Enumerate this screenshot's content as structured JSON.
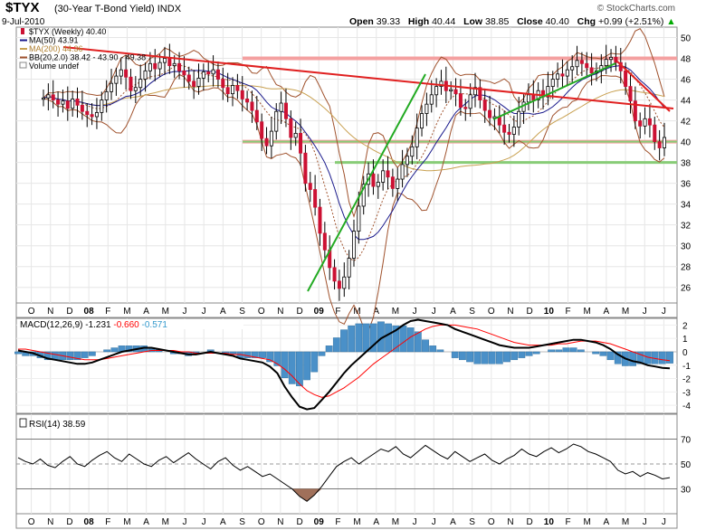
{
  "header": {
    "symbol": "$TYX",
    "name": "(30-Year T-Bond Yield)",
    "exchange": "INDX",
    "date": "9-Jul-2010",
    "open_label": "Open",
    "open": "39.33",
    "high_label": "High",
    "high": "40.44",
    "low_label": "Low",
    "low": "38.85",
    "close_label": "Close",
    "close": "40.40",
    "chg_label": "Chg",
    "chg": "+0.99 (+2.51%)",
    "chg_arrow": "▲",
    "copyright": "© StockCharts.com"
  },
  "legend": [
    {
      "text": "$TYX (Weekly) 40.40",
      "color": "#000000",
      "marker": "candle"
    },
    {
      "text": "MA(50) 43.91",
      "color": "#1a1a8c",
      "marker": "line"
    },
    {
      "text": "MA(200) 44.36",
      "color": "#c8a050",
      "marker": "line"
    },
    {
      "text": "BB(20,2.0) 38.42 - 43.90 - 49.38",
      "color": "#a0522d",
      "marker": "line"
    },
    {
      "text": "Volume undef",
      "color": "#888888",
      "marker": "box"
    }
  ],
  "macd_label": {
    "prefix": "MACD(12,26,9)",
    "v1": "-1.231",
    "v1_color": "#000000",
    "v2": "-0.660",
    "v2_color": "#ff0000",
    "v3": "-0.571",
    "v3_color": "#3399cc"
  },
  "rsi_label": {
    "text": "RSI(14) 38.59"
  },
  "x_axis_labels": [
    {
      "label": "O"
    },
    {
      "label": "N"
    },
    {
      "label": "D"
    },
    {
      "label": "08",
      "bold": true
    },
    {
      "label": "F"
    },
    {
      "label": "M"
    },
    {
      "label": "A"
    },
    {
      "label": "M"
    },
    {
      "label": "J"
    },
    {
      "label": "J"
    },
    {
      "label": "A"
    },
    {
      "label": "S"
    },
    {
      "label": "O"
    },
    {
      "label": "N"
    },
    {
      "label": "D"
    },
    {
      "label": "09",
      "bold": true
    },
    {
      "label": "F"
    },
    {
      "label": "M"
    },
    {
      "label": "A"
    },
    {
      "label": "M"
    },
    {
      "label": "J"
    },
    {
      "label": "J"
    },
    {
      "label": "A"
    },
    {
      "label": "S"
    },
    {
      "label": "O"
    },
    {
      "label": "N"
    },
    {
      "label": "D"
    },
    {
      "label": "10",
      "bold": true
    },
    {
      "label": "F"
    },
    {
      "label": "M"
    },
    {
      "label": "A"
    },
    {
      "label": "M"
    },
    {
      "label": "J"
    },
    {
      "label": "J"
    }
  ],
  "chart_data": [
    {
      "type": "candlestick",
      "title": "$TYX (Weekly)",
      "yticks": [
        26,
        28,
        30,
        32,
        34,
        36,
        38,
        40,
        42,
        44,
        46,
        48,
        50
      ],
      "ylim": [
        24.5,
        51
      ],
      "close_series": [
        44.2,
        44.5,
        44.0,
        43.6,
        43.9,
        43.2,
        44.1,
        43.5,
        42.9,
        42.6,
        42.4,
        42.8,
        44.0,
        44.8,
        45.6,
        46.3,
        46.9,
        46.2,
        44.9,
        45.2,
        46.0,
        46.8,
        47.5,
        47.0,
        47.6,
        48.0,
        47.3,
        47.5,
        46.8,
        46.4,
        45.8,
        45.3,
        46.1,
        46.7,
        46.5,
        46.9,
        46.0,
        45.2,
        44.6,
        45.4,
        44.9,
        44.1,
        43.8,
        43.0,
        41.9,
        40.3,
        39.6,
        41.0,
        42.9,
        43.7,
        42.2,
        40.4,
        40.8,
        38.9,
        36.0,
        35.4,
        33.7,
        31.2,
        29.6,
        27.9,
        26.6,
        25.9,
        27.0,
        28.8,
        31.4,
        33.8,
        35.9,
        36.9,
        35.7,
        36.1,
        37.2,
        36.6,
        35.5,
        36.4,
        37.8,
        38.6,
        39.5,
        41.3,
        42.7,
        43.6,
        44.5,
        45.3,
        45.8,
        44.9,
        45.0,
        44.6,
        43.3,
        43.2,
        44.5,
        45.2,
        44.0,
        43.0,
        42.3,
        42.4,
        41.6,
        40.9,
        40.7,
        41.4,
        42.9,
        43.8,
        44.5,
        44.0,
        44.9,
        44.3,
        45.3,
        46.0,
        46.5,
        46.3,
        46.9,
        47.2,
        47.8,
        47.5,
        47.1,
        46.6,
        46.8,
        47.3,
        47.9,
        48.1,
        47.6,
        46.8,
        45.3,
        43.9,
        42.0,
        41.5,
        42.2,
        41.6,
        40.0,
        39.4,
        40.4
      ],
      "support_lines": [
        38,
        40
      ],
      "resistance_line": 48,
      "xlabel": "",
      "ylabel": ""
    },
    {
      "type": "line",
      "title": "MACD(12,26,9)",
      "yticks": [
        2,
        1,
        0,
        -1,
        -2,
        -3,
        -4
      ],
      "ylim": [
        -4.6,
        2.5
      ],
      "series": [
        {
          "name": "MACD",
          "color": "#000000",
          "values": [
            0.1,
            0.0,
            -0.1,
            -0.3,
            -0.5,
            -0.6,
            -0.7,
            -0.8,
            -0.9,
            -0.9,
            -0.8,
            -0.6,
            -0.4,
            -0.2,
            0.0,
            0.1,
            0.2,
            0.3,
            0.3,
            0.2,
            0.1,
            0.0,
            -0.1,
            -0.2,
            -0.2,
            -0.1,
            0.0,
            -0.1,
            -0.2,
            -0.3,
            -0.5,
            -0.6,
            -0.7,
            -0.8,
            -1.1,
            -1.6,
            -2.6,
            -3.4,
            -4.1,
            -4.3,
            -4.2,
            -3.6,
            -3.0,
            -2.3,
            -1.6,
            -1.0,
            -0.5,
            0.0,
            0.5,
            1.0,
            1.3,
            1.6,
            2.0,
            2.3,
            2.4,
            2.3,
            2.2,
            2.1,
            2.0,
            1.7,
            1.5,
            1.3,
            1.1,
            0.9,
            0.7,
            0.5,
            0.4,
            0.3,
            0.3,
            0.3,
            0.4,
            0.5,
            0.6,
            0.7,
            0.8,
            0.9,
            0.9,
            0.8,
            0.7,
            0.5,
            0.2,
            -0.2,
            -0.5,
            -0.7,
            -0.8,
            -1.0,
            -1.1,
            -1.2,
            -1.23
          ]
        },
        {
          "name": "Signal",
          "color": "#ff0000",
          "values": [
            0.2,
            0.2,
            0.1,
            0.0,
            -0.1,
            -0.2,
            -0.3,
            -0.4,
            -0.5,
            -0.6,
            -0.6,
            -0.6,
            -0.5,
            -0.4,
            -0.3,
            -0.2,
            -0.1,
            0.0,
            0.1,
            0.1,
            0.1,
            0.1,
            0.0,
            0.0,
            -0.1,
            -0.1,
            -0.1,
            -0.1,
            -0.1,
            -0.2,
            -0.2,
            -0.3,
            -0.4,
            -0.5,
            -0.6,
            -0.9,
            -1.3,
            -1.8,
            -2.4,
            -2.9,
            -3.2,
            -3.4,
            -3.3,
            -3.0,
            -2.7,
            -2.3,
            -1.9,
            -1.4,
            -0.9,
            -0.5,
            -0.1,
            0.3,
            0.7,
            1.1,
            1.4,
            1.7,
            1.9,
            2.0,
            2.0,
            2.0,
            1.9,
            1.8,
            1.7,
            1.5,
            1.3,
            1.1,
            0.9,
            0.7,
            0.6,
            0.5,
            0.5,
            0.5,
            0.5,
            0.6,
            0.6,
            0.7,
            0.8,
            0.8,
            0.8,
            0.7,
            0.6,
            0.4,
            0.2,
            0.0,
            -0.2,
            -0.4,
            -0.5,
            -0.6,
            -0.66
          ]
        }
      ]
    },
    {
      "type": "line",
      "title": "RSI(14)",
      "yticks": [
        70,
        50,
        30
      ],
      "ylim": [
        10,
        90
      ],
      "overbought": 70,
      "oversold": 30,
      "series": [
        {
          "name": "RSI",
          "color": "#000000",
          "values": [
            55,
            52,
            50,
            54,
            49,
            47,
            52,
            56,
            50,
            48,
            53,
            57,
            60,
            55,
            52,
            58,
            54,
            50,
            48,
            53,
            56,
            51,
            55,
            59,
            54,
            50,
            46,
            52,
            55,
            49,
            45,
            48,
            44,
            40,
            42,
            38,
            34,
            30,
            24,
            20,
            25,
            32,
            40,
            48,
            52,
            55,
            50,
            54,
            58,
            62,
            60,
            64,
            58,
            55,
            60,
            65,
            61,
            57,
            54,
            60,
            56,
            52,
            55,
            58,
            53,
            50,
            54,
            57,
            62,
            58,
            56,
            60,
            63,
            59,
            62,
            66,
            64,
            60,
            58,
            55,
            52,
            45,
            42,
            44,
            40,
            43,
            41,
            38,
            39
          ]
        }
      ]
    }
  ]
}
